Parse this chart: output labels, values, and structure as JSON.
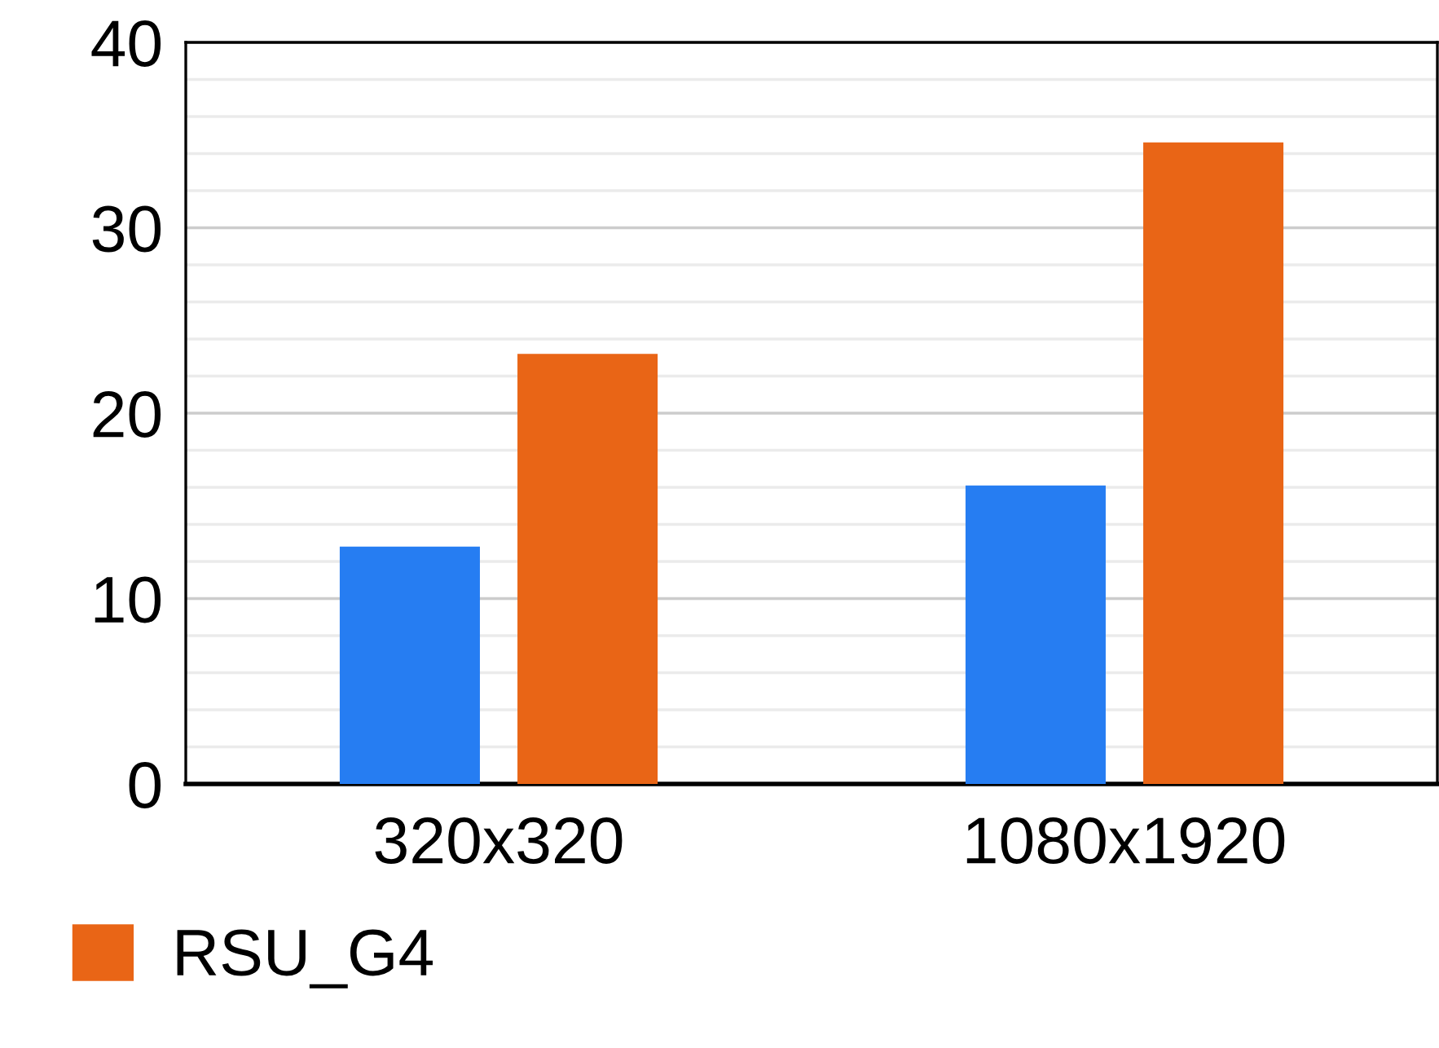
{
  "chart_data": {
    "type": "bar",
    "categories": [
      "320x320",
      "1080x1920"
    ],
    "series": [
      {
        "color": "#267df2",
        "values": [
          12.8,
          16.1
        ]
      },
      {
        "name": "RSU_G4",
        "color": "#e96516",
        "values": [
          23.2,
          34.6
        ]
      }
    ],
    "ylim": [
      0,
      40
    ],
    "yticks": [
      0,
      {
        "value": 2,
        "label": null
      },
      {
        "value": 4,
        "label": null
      },
      {
        "value": 6,
        "label": null
      },
      {
        "value": 8,
        "label": null
      },
      10,
      {
        "value": 12,
        "label": null
      },
      {
        "value": 14,
        "label": null
      },
      {
        "value": 16,
        "label": null
      },
      {
        "value": 18,
        "label": null
      },
      20,
      {
        "value": 22,
        "label": null
      },
      {
        "value": 24,
        "label": null
      },
      {
        "value": 26,
        "label": null
      },
      {
        "value": 28,
        "label": null
      },
      30,
      {
        "value": 32,
        "label": null
      },
      {
        "value": 34,
        "label": null
      },
      {
        "value": 36,
        "label": null
      },
      {
        "value": 38,
        "label": null
      },
      40
    ],
    "grid": "y",
    "legend": "bottom left"
  }
}
